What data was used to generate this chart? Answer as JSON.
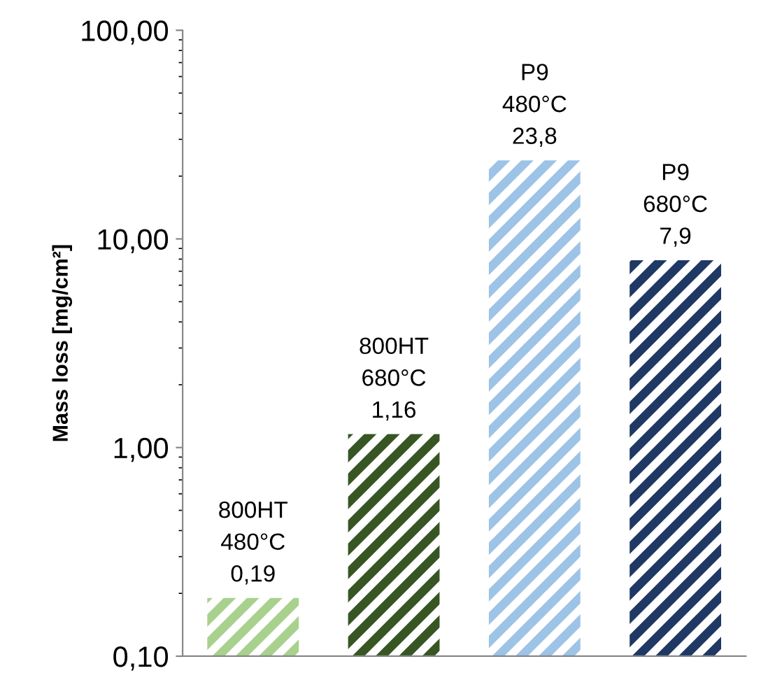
{
  "chart_data": {
    "type": "bar",
    "ylabel": "Mass loss [mg/cm²]",
    "log": "y",
    "categories": [
      null,
      null,
      null,
      null
    ],
    "values": [
      0.19,
      1.16,
      23.8,
      7.9
    ],
    "colors": [
      "#a9d18e",
      "#375623",
      "#9dc3e6",
      "#1f3864"
    ],
    "value_labels": [
      "800HT\n480°C\n0,19",
      "800HT\n680°C\n1,16",
      "P9\n480°C\n23,8",
      "P9\n680°C\n7,9"
    ],
    "ylim": [
      0.1,
      100
    ],
    "yticks": [
      {
        "value": 0.1,
        "label": "0,10"
      },
      {
        "value": 1,
        "label": "1,00"
      },
      {
        "value": 10,
        "label": "10,00"
      },
      {
        "value": 100,
        "label": "100,00"
      }
    ],
    "grid": false
  }
}
